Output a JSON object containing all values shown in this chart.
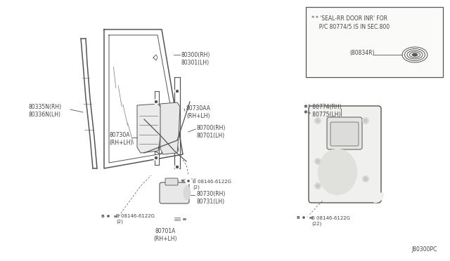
{
  "bg_color": "#ffffff",
  "line_color": "#555555",
  "text_color": "#444444",
  "diagram_code": "J80300PC",
  "inset_title_line1": "* 'SEAL-RR DOOR INR' FOR",
  "inset_title_line2": "  P/C 80774/5 IS IN SEC.800",
  "inset_part": "(80834R)",
  "label_glass_trim": [
    "80335N(RH)",
    "80336N(LH)"
  ],
  "label_glass": [
    "80300(RH)",
    "80301(LH)"
  ],
  "label_reg_bracket": [
    "80730A",
    "(RH+LH)"
  ],
  "label_reg_aa": [
    "80730AA",
    "(RH+LH)"
  ],
  "label_reg_rail": [
    "80700(RH)",
    "80701(LH)"
  ],
  "label_screw_left": [
    "B 08146-6122G",
    "(2)"
  ],
  "label_screw_mid": [
    "B 08146-6122G",
    "(2)"
  ],
  "label_screw_module": [
    "B 08146-6122G",
    "(22)"
  ],
  "label_motor": [
    "80730(RH)",
    "80731(LH)"
  ],
  "label_motor_conn": [
    "80701A",
    "(RH+LH)"
  ],
  "label_module": [
    "* 80774(RH)",
    "* 80775(LH)"
  ]
}
